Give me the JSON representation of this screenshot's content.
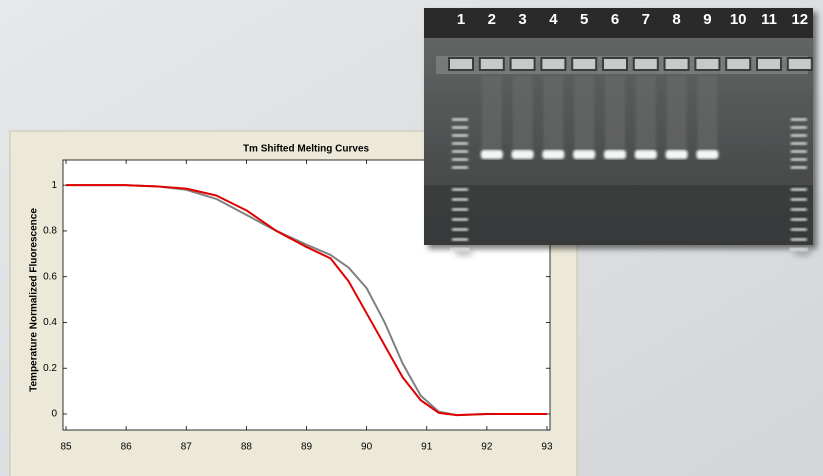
{
  "chart_data": {
    "type": "line",
    "title": "Tm Shifted Melting Curves",
    "y_label": "Temperature Normalized Fluorescence",
    "x": [
      85,
      86,
      86.5,
      87,
      87.5,
      88,
      88.5,
      89,
      89.4,
      89.7,
      90,
      90.3,
      90.6,
      90.9,
      91.2,
      91.5,
      92,
      93
    ],
    "series": [
      {
        "color": "#808080",
        "values": [
          1,
          1,
          0.995,
          0.98,
          0.94,
          0.87,
          0.8,
          0.74,
          0.695,
          0.64,
          0.55,
          0.4,
          0.22,
          0.08,
          0.01,
          -0.005,
          0,
          0
        ]
      },
      {
        "color": "#e00000",
        "values": [
          1,
          1,
          0.995,
          0.985,
          0.955,
          0.89,
          0.8,
          0.73,
          0.68,
          0.58,
          0.44,
          0.3,
          0.16,
          0.06,
          0.005,
          -0.005,
          0,
          0
        ]
      }
    ],
    "xlim": [
      84.95,
      93.05
    ],
    "xticks": [
      85,
      86,
      87,
      88,
      89,
      90,
      91,
      92,
      93
    ],
    "ylim": [
      -0.07,
      1.11
    ],
    "yticks": [
      0,
      0.2,
      0.4,
      0.6,
      0.8,
      1
    ]
  },
  "gel_image": {
    "lane_labels": [
      "1",
      "2",
      "3",
      "4",
      "5",
      "6",
      "7",
      "8",
      "9",
      "10",
      "11",
      "12"
    ]
  }
}
